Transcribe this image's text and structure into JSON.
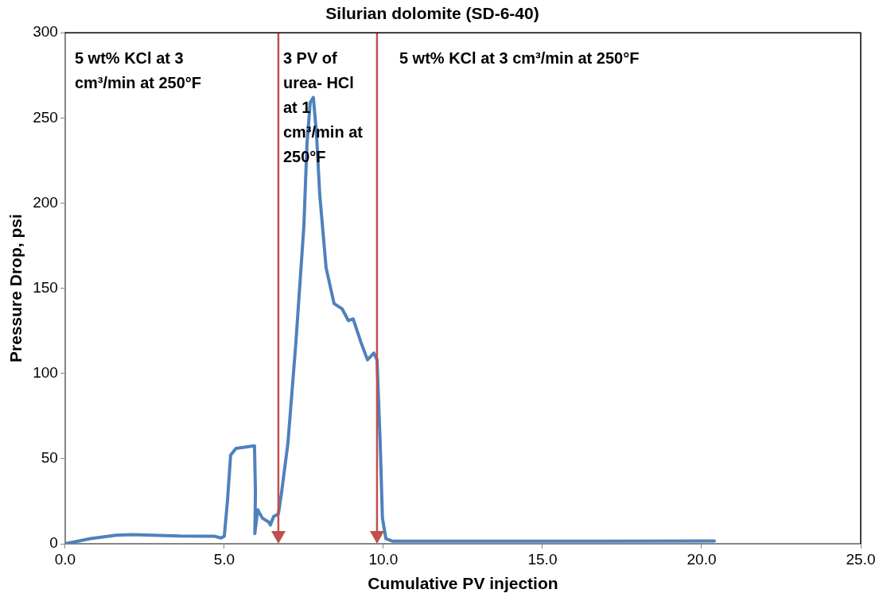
{
  "chart_data": {
    "type": "line",
    "title": "Silurian dolomite (SD-6-40)",
    "xlabel": "Cumulative PV injection",
    "ylabel": "Pressure Drop, psi",
    "xlim": [
      0,
      25
    ],
    "xticks": [
      {
        "value": 0,
        "label": "0.0"
      },
      {
        "value": 5,
        "label": "5.0"
      },
      {
        "value": 10,
        "label": "10.0"
      },
      {
        "value": 15,
        "label": "15.0"
      },
      {
        "value": 20,
        "label": "20.0"
      },
      {
        "value": 25,
        "label": "25.0"
      }
    ],
    "ylim": [
      0,
      300
    ],
    "yticks": [
      0,
      50,
      100,
      150,
      200,
      250,
      300
    ],
    "grid": false,
    "legend": false,
    "marker": "none",
    "line_style": "solid",
    "series": [
      {
        "color": "#4f81bd",
        "x": [
          0,
          0.8,
          1.6,
          2.1,
          3.6,
          4.7,
          4.9,
          5.0,
          5.1,
          5.2,
          5.37,
          5.95,
          5.98,
          5.96,
          6.05,
          6.2,
          6.4,
          6.45,
          6.55,
          6.7,
          6.8,
          7.0,
          7.25,
          7.5,
          7.6,
          7.7,
          7.8,
          7.9,
          8.0,
          8.2,
          8.45,
          8.7,
          8.9,
          9.05,
          9.3,
          9.5,
          9.7,
          9.8,
          9.9,
          9.97,
          10.08,
          10.3,
          15.2,
          20.4
        ],
        "values": [
          0,
          3,
          5,
          5.4,
          4.5,
          4.4,
          3.4,
          4.4,
          25,
          52,
          56,
          57.5,
          30,
          6,
          20,
          15,
          12.7,
          11,
          16,
          17.5,
          30,
          59,
          118,
          186,
          235,
          259,
          262,
          240,
          205,
          162,
          141,
          138,
          131,
          132,
          118,
          108,
          112,
          108,
          59,
          15,
          3,
          1.5,
          1.5,
          1.6
        ]
      }
    ],
    "ref_lines": [
      {
        "axis": "x",
        "value": 6.7,
        "color": "#c0504d"
      },
      {
        "axis": "x",
        "value": 9.8,
        "color": "#c0504d"
      }
    ],
    "annotations": [
      "5 wt% KCl at 3 cm³/min at 250°F",
      "3 PV of urea- HCl at 1 cm³/min at 250°F",
      "5 wt% KCl at 3 cm³/min at 250°F"
    ]
  }
}
